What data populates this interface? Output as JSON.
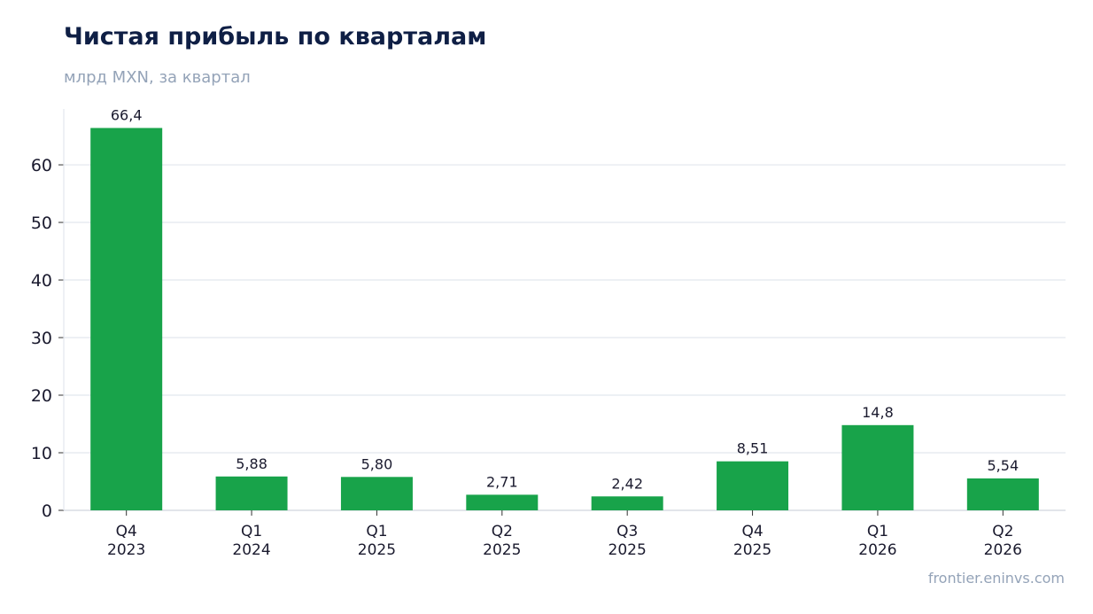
{
  "chart_data": {
    "type": "bar",
    "title": "Чистая прибыль по кварталам",
    "subtitle": "млрд MXN, за квартал",
    "categories": [
      [
        "Q4",
        "2023"
      ],
      [
        "Q1",
        "2024"
      ],
      [
        "Q1",
        "2025"
      ],
      [
        "Q2",
        "2025"
      ],
      [
        "Q3",
        "2025"
      ],
      [
        "Q4",
        "2025"
      ],
      [
        "Q1",
        "2026"
      ],
      [
        "Q2",
        "2026"
      ]
    ],
    "values": [
      66.4,
      5.88,
      5.8,
      2.71,
      2.42,
      8.51,
      14.8,
      5.54
    ],
    "value_labels": [
      "66,4",
      "5,88",
      "5,80",
      "2,71",
      "2,42",
      "8,51",
      "14,8",
      "5,54"
    ],
    "yticks": [
      0,
      10,
      20,
      30,
      40,
      50,
      60
    ],
    "ylim": [
      0,
      69.7
    ],
    "grid": true,
    "bar_color": "#18a34a",
    "xlabel": "",
    "ylabel": ""
  },
  "source": "frontier.eninvs.com"
}
